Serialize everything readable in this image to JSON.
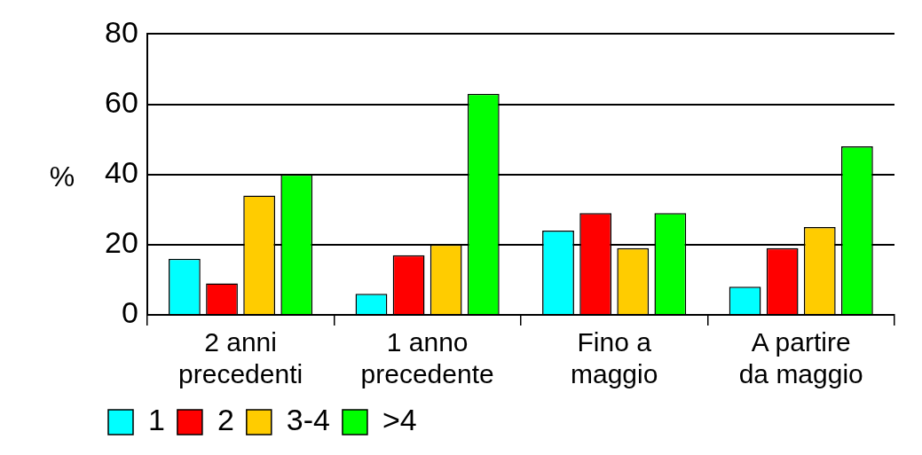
{
  "chart_data": {
    "type": "bar",
    "ylabel": "%",
    "categories": [
      "2 anni precedenti",
      "1 anno precedente",
      "Fino a maggio",
      "A partire da maggio"
    ],
    "series": [
      {
        "name": "1",
        "color": "#00ffff",
        "values": [
          16,
          6,
          24,
          8
        ]
      },
      {
        "name": "2",
        "color": "#ff0000",
        "values": [
          9,
          17,
          29,
          19
        ]
      },
      {
        "name": "3-4",
        "color": "#ffcc00",
        "values": [
          34,
          20,
          19,
          25
        ]
      },
      {
        "name": ">4",
        "color": "#00ff00",
        "values": [
          40,
          63,
          29,
          48
        ]
      }
    ],
    "ylim": [
      0,
      80
    ],
    "yticks": [
      0,
      20,
      40,
      60,
      80
    ],
    "grid": "y",
    "legend": "bottom left"
  }
}
